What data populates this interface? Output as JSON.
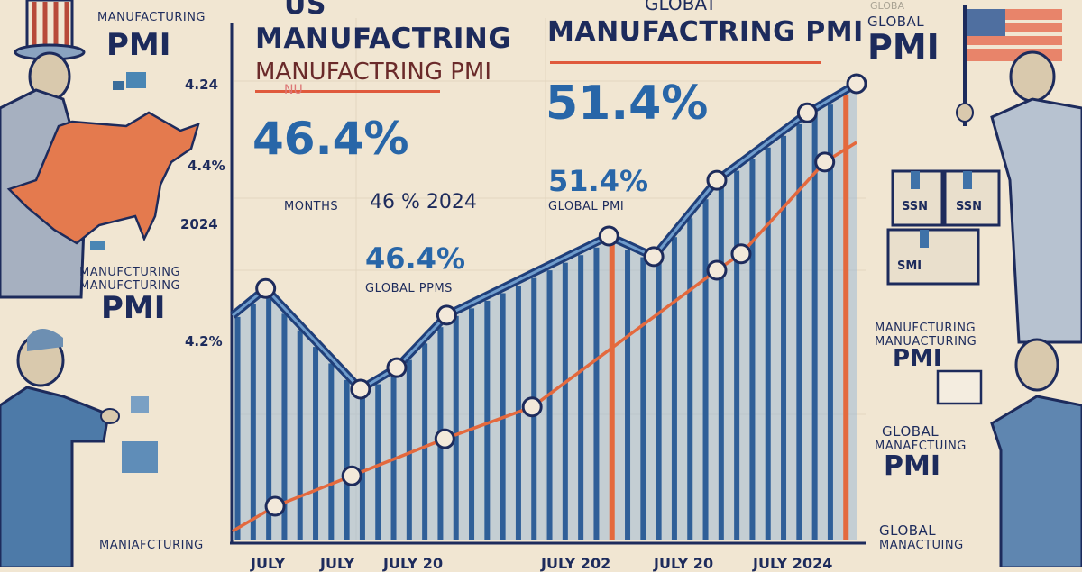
{
  "colors": {
    "background": "#f1e6d2",
    "navy": "#1d2b5c",
    "blue": "#2866a8",
    "bar_blue": "#3f72a8",
    "orange": "#e4693d",
    "red_rule": "#e05a3c"
  },
  "headline": {
    "us_top": "US",
    "us_title": "MANUFACTRING",
    "us_subtitle": "MANUFACTRING PMI",
    "us_rule_text": "NU",
    "us_value": "46.4%",
    "months_label": "MONTHS",
    "us_note": "46 % 2024",
    "us_value_2": "46.4%",
    "us_value_2_label": "GLOBAL PPMS",
    "global_top": "GLOBAT",
    "global_title": "MANUFACTRING PMI",
    "global_value": "51.4%",
    "global_value_2": "51.4%",
    "global_value_2_label": "GLOBAL PMI"
  },
  "left_panel": {
    "top_label": "MANUFACTURING",
    "top_pmi": "PMI",
    "mid_label_1": "MANUFCTURING",
    "mid_label_2": "MANUFCTURING",
    "mid_pmi": "PMI",
    "bottom_label": "MANIAFCTURING",
    "figure_1": "uncle-sam-figure",
    "figure_2": "businessman-figure",
    "map": "us-map-icon"
  },
  "right_panel": {
    "top_small": "GLOBA",
    "top_label": "GLOBAL",
    "top_pmi": "PMI",
    "box_labels": [
      "SSN",
      "SSN",
      "SMI"
    ],
    "mid_label_1": "MANUFCTURING",
    "mid_label_2": "MANUACTURING",
    "mid_pmi": "PMI",
    "lower_label_1": "GLOBAL",
    "lower_label_2": "MANAFCTUING",
    "lower_pmi": "PMI",
    "bottom_label_1": "GLOBAL",
    "bottom_label_2": "MANACTUING",
    "flag": "us-flag-icon",
    "figure_1": "flag-bearer-figure",
    "figure_2": "businessman-with-tablet-figure"
  },
  "chart_data": {
    "type": "line",
    "title": "",
    "xlabel": "",
    "ylabel": "",
    "y_tick_labels": [
      "4.24",
      "4.4%",
      "2024",
      "4.2%"
    ],
    "x_tick_labels": [
      "JULY",
      "JULY",
      "JULY 20",
      "JULY 202",
      "JULY 20",
      "JULY 2024"
    ],
    "xlim": [
      0,
      100
    ],
    "ylim": [
      0,
      100
    ],
    "grid": true,
    "legend": "none",
    "series": [
      {
        "color": "#1f3f7a",
        "fill": "vertical-bars",
        "x": [
          0,
          5.3,
          20.5,
          26.3,
          34.3,
          60.3,
          67.5,
          77.6,
          92.1,
          100
        ],
        "y": [
          48,
          53.8,
          32.3,
          36.9,
          48.1,
          65,
          60.6,
          76.9,
          91.3,
          97.5
        ]
      },
      {
        "color": "#e4693d",
        "x": [
          0,
          6.8,
          19.1,
          34,
          48,
          77.6,
          81.5,
          94.9,
          100
        ],
        "y": [
          2,
          7.3,
          13.8,
          21.7,
          28.5,
          57.7,
          61.2,
          80.8,
          85
        ]
      }
    ],
    "highlight_bars_x": [
      61,
      99.5
    ]
  }
}
